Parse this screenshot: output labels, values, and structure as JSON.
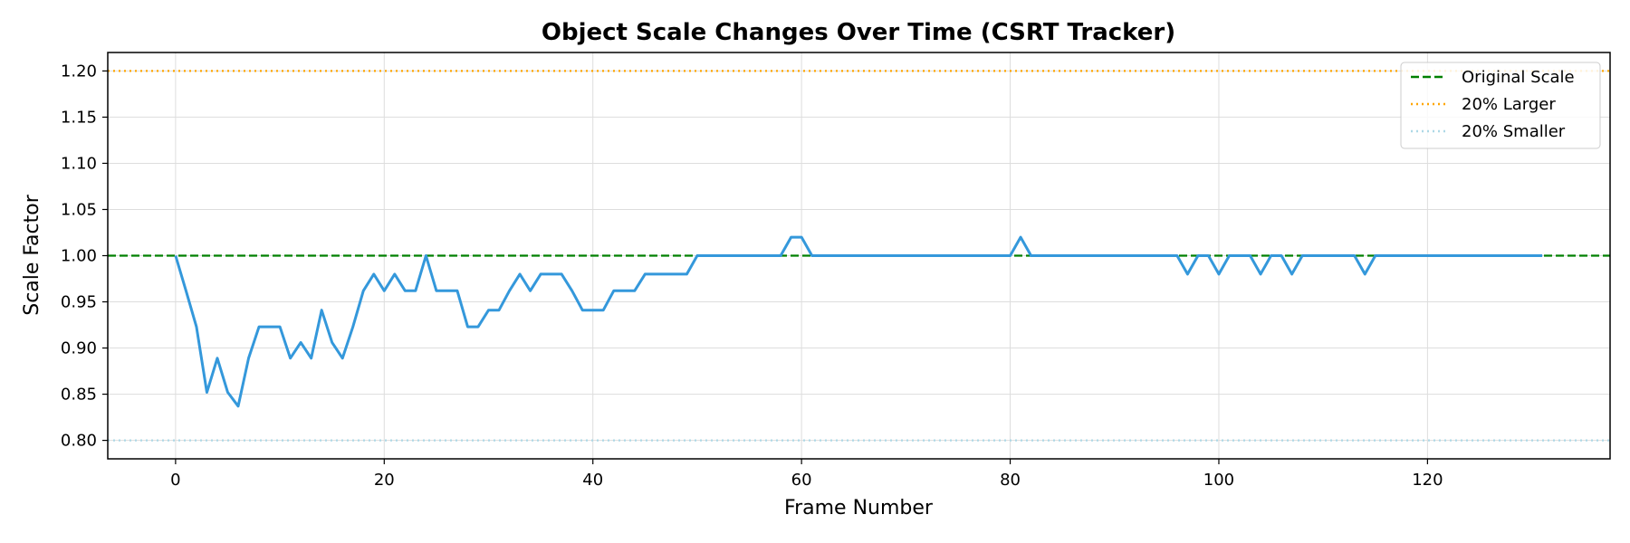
{
  "chart_data": {
    "type": "line",
    "title": "Object Scale Changes Over Time (CSRT Tracker)",
    "xlabel": "Frame Number",
    "ylabel": "Scale Factor",
    "xlim": [
      -6.5,
      137.5
    ],
    "ylim": [
      0.78,
      1.22
    ],
    "xticks": [
      0,
      20,
      40,
      60,
      80,
      100,
      120
    ],
    "yticks": [
      0.8,
      0.85,
      0.9,
      0.95,
      1.0,
      1.05,
      1.1,
      1.15,
      1.2
    ],
    "grid": true,
    "legend_position": "top-right",
    "series": [
      {
        "name": "",
        "color": "#3498db",
        "x": [
          0,
          1,
          2,
          3,
          4,
          5,
          6,
          7,
          8,
          9,
          10,
          11,
          12,
          13,
          14,
          15,
          16,
          17,
          18,
          19,
          20,
          21,
          22,
          23,
          24,
          25,
          26,
          27,
          28,
          29,
          30,
          31,
          32,
          33,
          34,
          35,
          36,
          37,
          38,
          39,
          40,
          41,
          42,
          43,
          44,
          45,
          46,
          47,
          48,
          49,
          50,
          51,
          52,
          53,
          54,
          55,
          56,
          57,
          58,
          59,
          60,
          61,
          62,
          63,
          64,
          65,
          66,
          67,
          68,
          69,
          70,
          71,
          72,
          73,
          74,
          75,
          76,
          77,
          78,
          79,
          80,
          81,
          82,
          83,
          84,
          85,
          86,
          87,
          88,
          89,
          90,
          91,
          92,
          93,
          94,
          95,
          96,
          97,
          98,
          99,
          100,
          101,
          102,
          103,
          104,
          105,
          106,
          107,
          108,
          109,
          110,
          111,
          112,
          113,
          114,
          115,
          116,
          117,
          118,
          119,
          120,
          121,
          122,
          123,
          124,
          125,
          126,
          127,
          128,
          129,
          130,
          131
        ],
        "y": [
          1.0,
          0.962,
          0.923,
          0.852,
          0.889,
          0.852,
          0.837,
          0.889,
          0.923,
          0.923,
          0.923,
          0.889,
          0.906,
          0.889,
          0.941,
          0.906,
          0.889,
          0.923,
          0.962,
          0.98,
          0.962,
          0.98,
          0.962,
          0.962,
          1.0,
          0.962,
          0.962,
          0.962,
          0.923,
          0.923,
          0.941,
          0.941,
          0.962,
          0.98,
          0.962,
          0.98,
          0.98,
          0.98,
          0.962,
          0.941,
          0.941,
          0.941,
          0.962,
          0.962,
          0.962,
          0.98,
          0.98,
          0.98,
          0.98,
          0.98,
          1.0,
          1.0,
          1.0,
          1.0,
          1.0,
          1.0,
          1.0,
          1.0,
          1.0,
          1.02,
          1.02,
          1.0,
          1.0,
          1.0,
          1.0,
          1.0,
          1.0,
          1.0,
          1.0,
          1.0,
          1.0,
          1.0,
          1.0,
          1.0,
          1.0,
          1.0,
          1.0,
          1.0,
          1.0,
          1.0,
          1.0,
          1.02,
          1.0,
          1.0,
          1.0,
          1.0,
          1.0,
          1.0,
          1.0,
          1.0,
          1.0,
          1.0,
          1.0,
          1.0,
          1.0,
          1.0,
          1.0,
          0.98,
          1.0,
          1.0,
          0.98,
          1.0,
          1.0,
          1.0,
          0.98,
          1.0,
          1.0,
          0.98,
          1.0,
          1.0,
          1.0,
          1.0,
          1.0,
          1.0,
          0.98,
          1.0,
          1.0,
          1.0,
          1.0,
          1.0,
          1.0,
          1.0,
          1.0,
          1.0,
          1.0,
          1.0,
          1.0,
          1.0,
          1.0,
          1.0,
          1.0,
          1.0
        ]
      }
    ],
    "reference_lines": [
      {
        "name": "Original Scale",
        "y": 1.0,
        "color": "#008000",
        "style": "dashed"
      },
      {
        "name": "20% Larger",
        "y": 1.2,
        "color": "#ffa500",
        "style": "dotted"
      },
      {
        "name": "20% Smaller",
        "y": 0.8,
        "color": "#add8e6",
        "style": "dotted"
      }
    ],
    "legend": [
      "Original Scale",
      "20% Larger",
      "20% Smaller"
    ]
  }
}
